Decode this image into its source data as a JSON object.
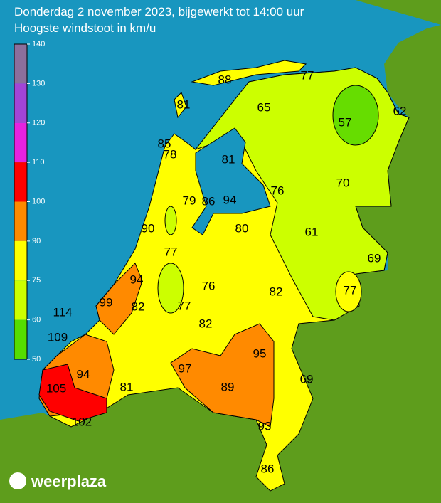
{
  "header": {
    "title": "Donderdag 2 november 2023, bijgewerkt tot 14:00 uur",
    "subtitle": "Hoogste windstoot in km/u"
  },
  "legend": {
    "ticks": [
      140,
      130,
      120,
      110,
      100,
      90,
      75,
      60,
      50
    ],
    "colors": [
      "#8c6f9c",
      "#a245d6",
      "#e622e0",
      "#ff0000",
      "#ff8a00",
      "#ffff00",
      "#ccff00",
      "#55dd00"
    ]
  },
  "stations": [
    88,
    77,
    81,
    65,
    57,
    62,
    85,
    78,
    81,
    70,
    76,
    79,
    86,
    94,
    90,
    80,
    61,
    69,
    77,
    94,
    76,
    82,
    77,
    99,
    114,
    82,
    77,
    82,
    109,
    95,
    97,
    94,
    69,
    105,
    81,
    89,
    102,
    93,
    86
  ],
  "logo": "weerplaza"
}
